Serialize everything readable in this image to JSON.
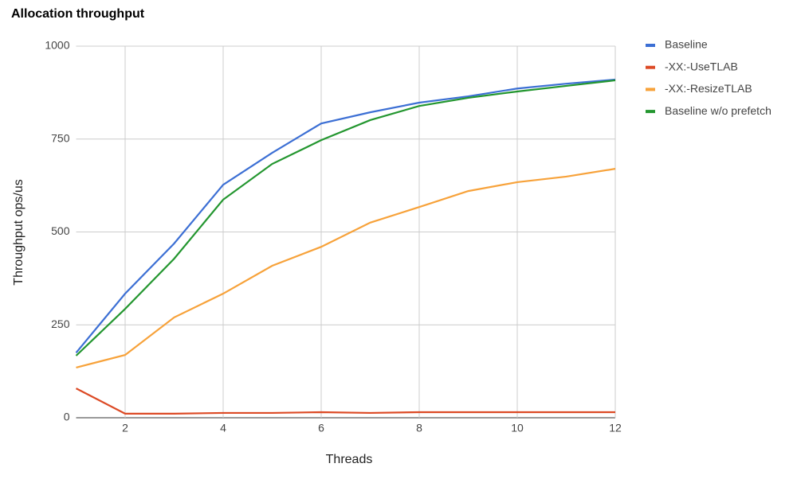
{
  "chart_data": {
    "type": "line",
    "title": "Allocation throughput",
    "x_label": "Threads",
    "y_label": "Throughput ops/us",
    "x": [
      1,
      2,
      3,
      4,
      5,
      6,
      7,
      8,
      9,
      10,
      11,
      12
    ],
    "series": [
      {
        "name": "Baseline",
        "color": "#3c6fd4",
        "values": [
          175,
          334,
          469,
          627,
          713,
          792,
          822,
          848,
          865,
          886,
          899,
          910
        ]
      },
      {
        "name": "-XX:-UseTLAB",
        "color": "#dc4a25",
        "values": [
          79,
          11,
          11,
          13,
          13,
          15,
          13,
          15,
          15,
          15,
          15,
          15
        ]
      },
      {
        "name": "-XX:-ResizeTLAB",
        "color": "#f7a23a",
        "values": [
          135,
          169,
          270,
          334,
          409,
          460,
          525,
          567,
          610,
          634,
          649,
          670
        ]
      },
      {
        "name": "Baseline w/o prefetch",
        "color": "#23962f",
        "values": [
          167,
          293,
          428,
          587,
          683,
          747,
          801,
          839,
          861,
          878,
          893,
          908
        ]
      }
    ],
    "xlim": [
      1,
      12
    ],
    "xticks": [
      2,
      4,
      6,
      8,
      10,
      12
    ],
    "ylim": [
      0,
      1000
    ],
    "yticks": [
      0,
      250,
      500,
      750,
      1000
    ],
    "grid": true,
    "legend": "right"
  }
}
